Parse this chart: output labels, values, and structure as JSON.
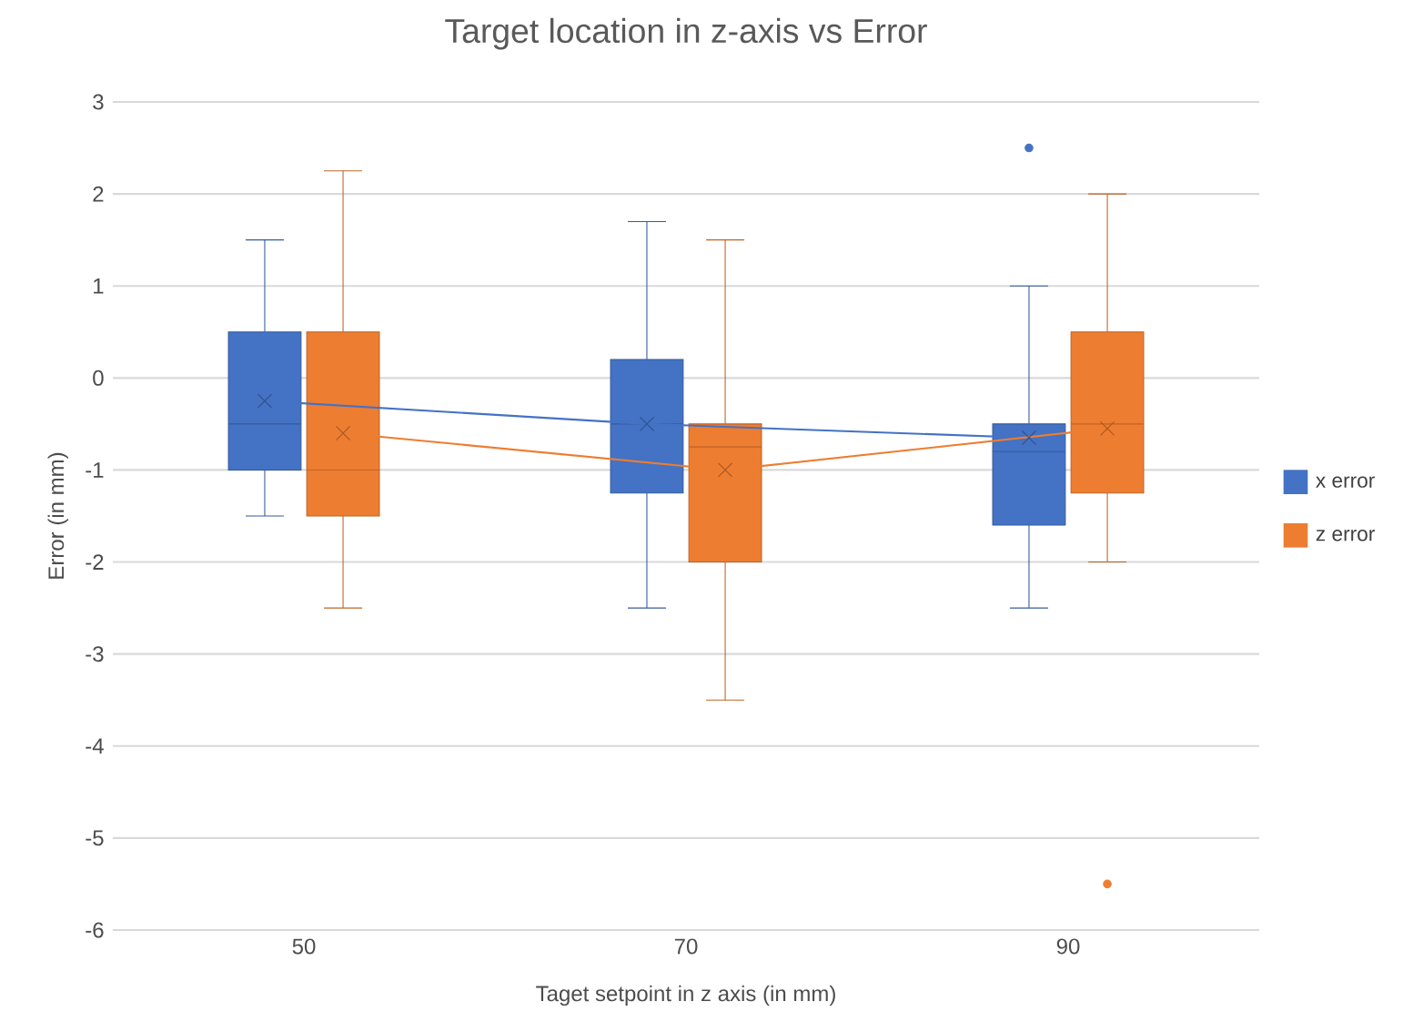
{
  "chart_data": {
    "type": "box",
    "title": "Target location in z-axis vs Error",
    "xlabel": "Taget setpoint in z axis (in mm)",
    "ylabel": "Error (in mm)",
    "categories": [
      "50",
      "70",
      "90"
    ],
    "series": [
      {
        "name": "x error",
        "color": "#4472c4",
        "boxes": [
          {
            "low": -1.5,
            "q1": -1,
            "median": -0.5,
            "q3": 0.5,
            "high": 1.5,
            "mean": -0.25
          },
          {
            "low": -2.5,
            "q1": -1.25,
            "median": -0.5,
            "q3": 0.2,
            "high": 1.7,
            "mean": -0.5
          },
          {
            "low": -2.5,
            "q1": -1.6,
            "median": -0.8,
            "q3": -0.5,
            "high": 1,
            "mean": -0.65,
            "outliers": [
              2.5
            ]
          }
        ]
      },
      {
        "name": "z error",
        "color": "#ed7d31",
        "boxes": [
          {
            "low": -2.5,
            "q1": -1.5,
            "median": -1,
            "q3": 0.5,
            "high": 2.25,
            "mean": -0.6
          },
          {
            "low": -3.5,
            "q1": -2,
            "median": -0.75,
            "q3": -0.5,
            "high": 1.5,
            "mean": -1
          },
          {
            "low": -2,
            "q1": -1.25,
            "median": -0.5,
            "q3": 0.5,
            "high": 2,
            "mean": -0.55,
            "outliers": [
              -5.5
            ]
          }
        ]
      },
      {
        "type": "line",
        "color": "#4472c4",
        "values": [
          -0.25,
          -0.5,
          -0.65
        ]
      },
      {
        "type": "line",
        "color": "#ed7d31",
        "values": [
          -0.6,
          -1,
          -0.55
        ]
      }
    ],
    "ylim": [
      -6,
      3
    ],
    "yticks": [
      -6,
      -5,
      -4,
      -3,
      -2,
      -1,
      0,
      1,
      2,
      3
    ],
    "grid": "y",
    "legend": "right"
  }
}
